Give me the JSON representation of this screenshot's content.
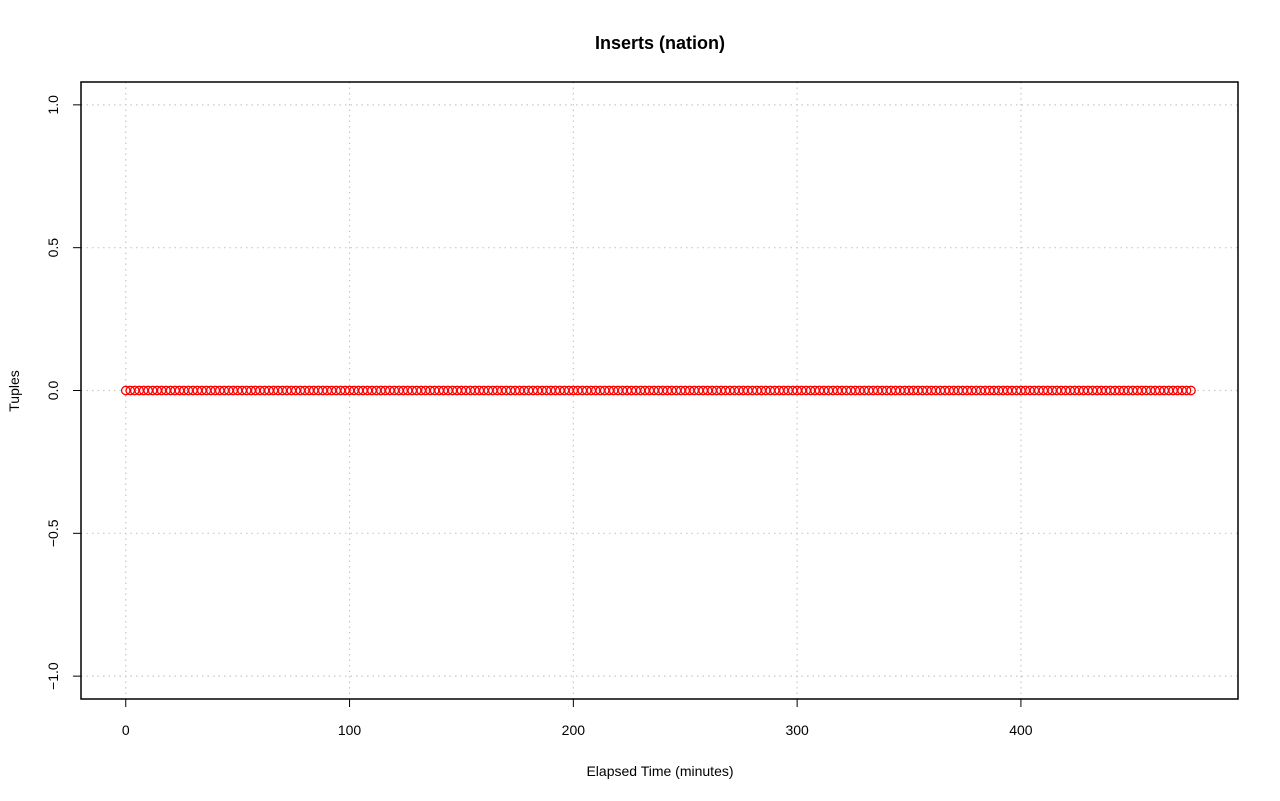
{
  "chart_data": {
    "type": "scatter",
    "title": "Inserts (nation)",
    "xlabel": "Elapsed Time (minutes)",
    "ylabel": "Tuples",
    "xlim": [
      -20,
      497
    ],
    "ylim": [
      -1.08,
      1.08
    ],
    "x_ticks": [
      0,
      100,
      200,
      300,
      400
    ],
    "x_tick_labels": [
      "0",
      "100",
      "200",
      "300",
      "400"
    ],
    "y_ticks": [
      -1.0,
      -0.5,
      0.0,
      0.5,
      1.0
    ],
    "y_tick_labels": [
      "−1.0",
      "−0.5",
      "0.0",
      "0.5",
      "1.0"
    ],
    "grid": true,
    "series": [
      {
        "color": "#ff0000",
        "marker": "open-circle",
        "x_start": 0,
        "x_end": 476,
        "x_step": 2,
        "y": 0
      }
    ]
  }
}
